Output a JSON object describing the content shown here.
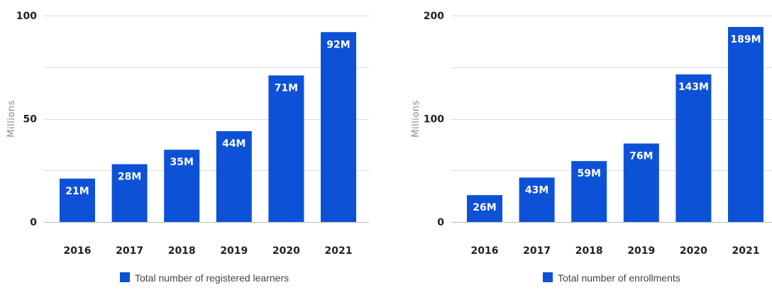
{
  "colors": {
    "bar": "#0d52d6",
    "grid": "#dcdcdc",
    "baseline": "#b8b8b8",
    "tick_text": "#222222",
    "data_label_text": "#ffffff",
    "axis_title_text": "#8a8a8a"
  },
  "chart_data": [
    {
      "type": "bar",
      "title": "",
      "xlabel": "",
      "ylabel": "Millions",
      "categories": [
        "2016",
        "2017",
        "2018",
        "2019",
        "2020",
        "2021"
      ],
      "series": [
        {
          "name": "Total number of registered learners",
          "values": [
            21,
            28,
            35,
            44,
            71,
            92
          ],
          "labels": [
            "21M",
            "28M",
            "35M",
            "44M",
            "71M",
            "92M"
          ]
        }
      ],
      "ylim": [
        0,
        100
      ],
      "yticks": [
        0,
        50,
        100
      ],
      "grid": true,
      "legend": "bottom-center"
    },
    {
      "type": "bar",
      "title": "",
      "xlabel": "",
      "ylabel": "Millions",
      "categories": [
        "2016",
        "2017",
        "2018",
        "2019",
        "2020",
        "2021"
      ],
      "series": [
        {
          "name": "Total number of enrollments",
          "values": [
            26,
            43,
            59,
            76,
            143,
            189
          ],
          "labels": [
            "26M",
            "43M",
            "59M",
            "76M",
            "143M",
            "189M"
          ]
        }
      ],
      "ylim": [
        0,
        200
      ],
      "yticks": [
        0,
        100,
        200
      ],
      "grid": true,
      "legend": "bottom-center"
    }
  ]
}
